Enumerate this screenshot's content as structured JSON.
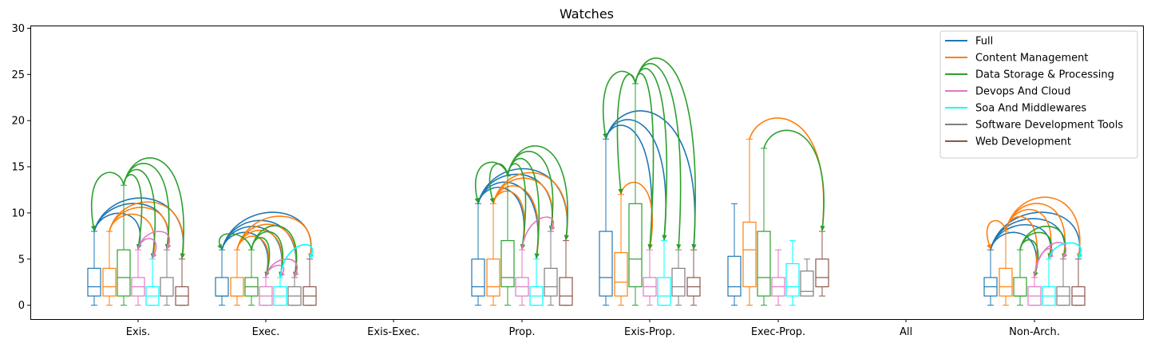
{
  "chart_data": {
    "type": "box",
    "title": "Watches",
    "xlabel": "",
    "ylabel": "",
    "ylim": [
      -1.5,
      30.3
    ],
    "yticks": [
      0,
      5,
      10,
      15,
      20,
      25,
      30
    ],
    "grid": false,
    "legend_position": "top-right",
    "categories": [
      "Exis.",
      "Exec.",
      "Exis-Exec.",
      "Prop.",
      "Exis-Prop.",
      "Exec-Prop.",
      "All",
      "Non-Arch."
    ],
    "series": [
      {
        "name": "Full",
        "color": "#1f77b4",
        "boxes": [
          {
            "whislo": 0,
            "q1": 1,
            "med": 2,
            "q3": 4,
            "whishi": 8
          },
          {
            "whislo": 0,
            "q1": 1,
            "med": 1,
            "q3": 3,
            "whishi": 6
          },
          null,
          {
            "whislo": 0,
            "q1": 1,
            "med": 2,
            "q3": 5,
            "whishi": 11
          },
          {
            "whislo": 0,
            "q1": 1,
            "med": 3,
            "q3": 8,
            "whishi": 18
          },
          {
            "whislo": 0,
            "q1": 1,
            "med": 2,
            "q3": 5.3,
            "whishi": 11
          },
          null,
          {
            "whislo": 0,
            "q1": 1,
            "med": 2,
            "q3": 3,
            "whishi": 6
          }
        ]
      },
      {
        "name": "Content Management",
        "color": "#ff7f0e",
        "boxes": [
          {
            "whislo": 0,
            "q1": 1,
            "med": 2,
            "q3": 4,
            "whishi": 8
          },
          {
            "whislo": 0,
            "q1": 1,
            "med": 1,
            "q3": 3,
            "whishi": 6
          },
          null,
          {
            "whislo": 0,
            "q1": 1,
            "med": 2,
            "q3": 5,
            "whishi": 11
          },
          {
            "whislo": 0,
            "q1": 1,
            "med": 2.5,
            "q3": 5.7,
            "whishi": 12
          },
          {
            "whislo": 0,
            "q1": 2,
            "med": 6,
            "q3": 9,
            "whishi": 18
          },
          null,
          {
            "whislo": 0,
            "q1": 1,
            "med": 2,
            "q3": 4,
            "whishi": 8
          }
        ]
      },
      {
        "name": "Data Storage & Processing",
        "color": "#2ca02c",
        "boxes": [
          {
            "whislo": 0,
            "q1": 1,
            "med": 3,
            "q3": 6,
            "whishi": 13
          },
          {
            "whislo": 0,
            "q1": 1,
            "med": 2,
            "q3": 3,
            "whishi": 6
          },
          null,
          {
            "whislo": 0,
            "q1": 2,
            "med": 3,
            "q3": 7,
            "whishi": 14
          },
          {
            "whislo": 0,
            "q1": 2,
            "med": 5,
            "q3": 11,
            "whishi": 24
          },
          {
            "whislo": 0,
            "q1": 1,
            "med": 3,
            "q3": 8,
            "whishi": 17
          },
          null,
          {
            "whislo": 0,
            "q1": 1,
            "med": 1,
            "q3": 3,
            "whishi": 6
          }
        ]
      },
      {
        "name": "Devops And Cloud",
        "color": "#e377c2",
        "boxes": [
          {
            "whislo": 0,
            "q1": 1,
            "med": 2,
            "q3": 3,
            "whishi": 6
          },
          {
            "whislo": 0,
            "q1": 0,
            "med": 1,
            "q3": 2,
            "whishi": 3
          },
          null,
          {
            "whislo": 0,
            "q1": 1,
            "med": 2,
            "q3": 3,
            "whishi": 6
          },
          {
            "whislo": 0,
            "q1": 1,
            "med": 2,
            "q3": 3,
            "whishi": 6
          },
          {
            "whislo": 0,
            "q1": 1,
            "med": 2,
            "q3": 3,
            "whishi": 6
          },
          null,
          {
            "whislo": 0,
            "q1": 0,
            "med": 1,
            "q3": 2,
            "whishi": 3
          }
        ]
      },
      {
        "name": "Soa And Middlewares",
        "color": "#00ffff",
        "boxes": [
          {
            "whislo": 0,
            "q1": 0,
            "med": 1,
            "q3": 2,
            "whishi": 5
          },
          {
            "whislo": 0,
            "q1": 0,
            "med": 1,
            "q3": 2,
            "whishi": 3
          },
          null,
          {
            "whislo": 0,
            "q1": 0,
            "med": 1,
            "q3": 2,
            "whishi": 5
          },
          {
            "whislo": 0,
            "q1": 0,
            "med": 1,
            "q3": 3,
            "whishi": 7
          },
          {
            "whislo": 0,
            "q1": 1,
            "med": 2,
            "q3": 4.5,
            "whishi": 7
          },
          null,
          {
            "whislo": 0,
            "q1": 0,
            "med": 1,
            "q3": 2,
            "whishi": 5
          }
        ]
      },
      {
        "name": "Software Development Tools",
        "color": "#7f7f7f",
        "boxes": [
          {
            "whislo": 0,
            "q1": 1,
            "med": 1,
            "q3": 3,
            "whishi": 6
          },
          {
            "whislo": 0,
            "q1": 0,
            "med": 1,
            "q3": 2,
            "whishi": 3
          },
          null,
          {
            "whislo": 0,
            "q1": 1,
            "med": 2,
            "q3": 4,
            "whishi": 8
          },
          {
            "whislo": 0,
            "q1": 1,
            "med": 2,
            "q3": 4,
            "whishi": 6
          },
          {
            "whislo": 1,
            "q1": 1,
            "med": 1.5,
            "q3": 3.7,
            "whishi": 5
          },
          null,
          {
            "whislo": 0,
            "q1": 0,
            "med": 1,
            "q3": 2,
            "whishi": 5
          }
        ]
      },
      {
        "name": "Web Development",
        "color": "#8c564b",
        "boxes": [
          {
            "whislo": 0,
            "q1": 0,
            "med": 1,
            "q3": 2,
            "whishi": 5
          },
          {
            "whislo": 0,
            "q1": 0,
            "med": 1,
            "q3": 2,
            "whishi": 5
          },
          null,
          {
            "whislo": 0,
            "q1": 0,
            "med": 1,
            "q3": 3,
            "whishi": 7
          },
          {
            "whislo": 0,
            "q1": 1,
            "med": 2,
            "q3": 3,
            "whishi": 6
          },
          {
            "whislo": 1,
            "q1": 2,
            "med": 3,
            "q3": 5,
            "whishi": 8
          },
          null,
          {
            "whislo": 0,
            "q1": 0,
            "med": 1,
            "q3": 2,
            "whishi": 5
          }
        ]
      }
    ],
    "arrows": [
      {
        "cat": 0,
        "from": 0,
        "to": [
          3,
          5,
          6
        ]
      },
      {
        "cat": 0,
        "from": 1,
        "to": [
          4,
          5,
          6
        ]
      },
      {
        "cat": 0,
        "from": 2,
        "to": [
          0,
          3,
          4,
          5,
          6
        ]
      },
      {
        "cat": 0,
        "from": 3,
        "to": [
          4,
          5
        ]
      },
      {
        "cat": 1,
        "from": 0,
        "to": [
          3,
          4,
          5,
          6
        ]
      },
      {
        "cat": 1,
        "from": 1,
        "to": [
          3,
          4,
          5,
          6
        ]
      },
      {
        "cat": 1,
        "from": 2,
        "to": [
          0,
          3,
          4,
          5
        ]
      },
      {
        "cat": 1,
        "from": 3,
        "to": [
          4,
          5
        ]
      },
      {
        "cat": 1,
        "from": 4,
        "to": [
          6
        ]
      },
      {
        "cat": 3,
        "from": 0,
        "to": [
          3,
          4,
          5,
          6
        ]
      },
      {
        "cat": 3,
        "from": 1,
        "to": [
          3,
          4,
          5,
          6
        ]
      },
      {
        "cat": 3,
        "from": 2,
        "to": [
          0,
          1,
          3,
          4,
          5,
          6
        ]
      },
      {
        "cat": 3,
        "from": 3,
        "to": [
          5
        ]
      },
      {
        "cat": 4,
        "from": 0,
        "to": [
          3,
          4,
          6
        ]
      },
      {
        "cat": 4,
        "from": 1,
        "to": [
          3
        ]
      },
      {
        "cat": 4,
        "from": 2,
        "to": [
          0,
          1,
          3,
          4,
          5,
          6
        ]
      },
      {
        "cat": 5,
        "from": 1,
        "to": [
          6
        ]
      },
      {
        "cat": 5,
        "from": 2,
        "to": [
          6
        ]
      },
      {
        "cat": 7,
        "from": 0,
        "to": [
          3,
          4,
          5,
          6
        ]
      },
      {
        "cat": 7,
        "from": 1,
        "to": [
          0,
          3,
          4,
          5,
          6
        ]
      },
      {
        "cat": 7,
        "from": 2,
        "to": [
          3,
          4,
          5
        ]
      },
      {
        "cat": 7,
        "from": 3,
        "to": [
          4,
          5
        ]
      },
      {
        "cat": 7,
        "from": 4,
        "to": [
          6
        ]
      }
    ]
  }
}
